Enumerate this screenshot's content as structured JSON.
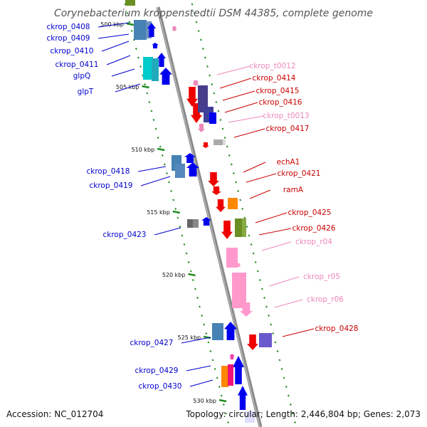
{
  "title": "Corynebacterium kroppenstedtii DSM 44385, complete genome",
  "accession": "Accession: NC_012704",
  "topology": "Topology: circular; Length: 2,446,804 bp; Genes: 2,073",
  "colors": {
    "backbone": "#8c8c8c",
    "tick": "#228b22",
    "left_label": "#0000cd",
    "right_label": "#cc0000",
    "rna_label": "#ee88bb"
  },
  "kbp_ticks": [
    {
      "label": "500 kbp"
    },
    {
      "label": "505 kbp"
    },
    {
      "label": "510 kbp"
    },
    {
      "label": "515 kbp"
    },
    {
      "label": "520 kbp"
    },
    {
      "label": "525 kbp"
    },
    {
      "label": "530 kbp"
    }
  ],
  "left_labels": [
    {
      "text": "ckrop_0408"
    },
    {
      "text": "ckrop_0409"
    },
    {
      "text": "ckrop_0410"
    },
    {
      "text": "ckrop_0411"
    },
    {
      "text": "glpQ"
    },
    {
      "text": "glpT"
    },
    {
      "text": "ckrop_0418"
    },
    {
      "text": "ckrop_0419"
    },
    {
      "text": "ckrop_0423"
    },
    {
      "text": "ckrop_0427"
    },
    {
      "text": "ckrop_0429"
    },
    {
      "text": "ckrop_0430"
    }
  ],
  "right_labels": [
    {
      "text": "ckrop_t0012",
      "kind": "rna"
    },
    {
      "text": "ckrop_0414",
      "kind": "gene"
    },
    {
      "text": "ckrop_0415",
      "kind": "gene"
    },
    {
      "text": "ckrop_0416",
      "kind": "gene"
    },
    {
      "text": "ckrop_t0013",
      "kind": "rna"
    },
    {
      "text": "ckrop_0417",
      "kind": "gene"
    },
    {
      "text": "echA1",
      "kind": "gene"
    },
    {
      "text": "ckrop_0421",
      "kind": "gene"
    },
    {
      "text": "ramA",
      "kind": "gene"
    },
    {
      "text": "ckrop_0425",
      "kind": "gene"
    },
    {
      "text": "ckrop_0426",
      "kind": "gene"
    },
    {
      "text": "ckrop_r04",
      "kind": "rna"
    },
    {
      "text": "ckrop_r05",
      "kind": "rna"
    },
    {
      "text": "ckrop_r06",
      "kind": "rna"
    },
    {
      "text": "ckrop_0428",
      "kind": "gene"
    }
  ]
}
